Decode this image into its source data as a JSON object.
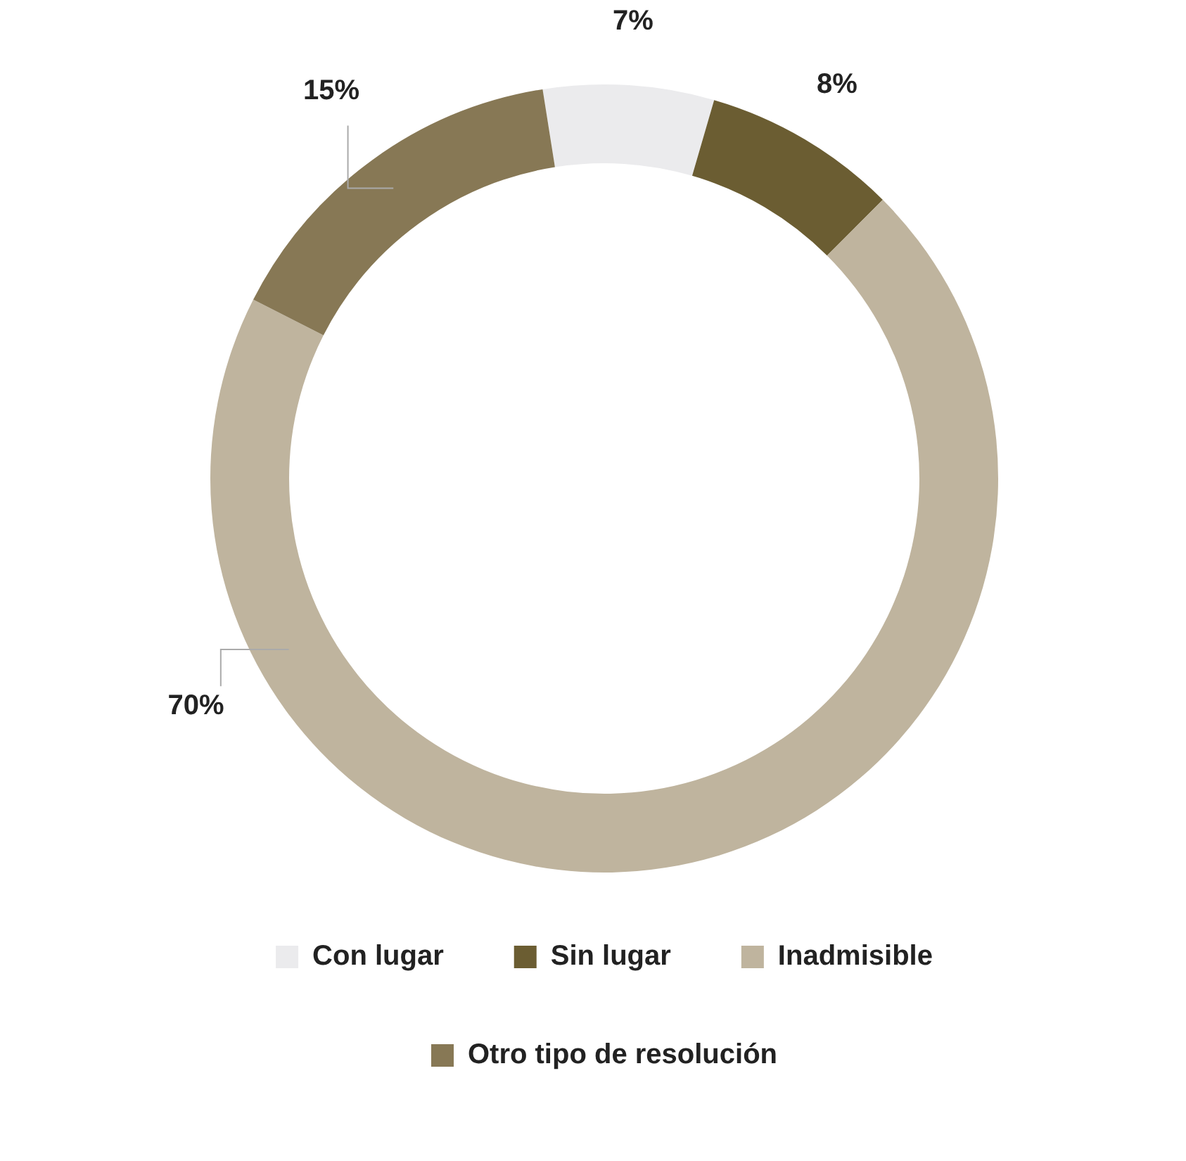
{
  "chart_data": {
    "type": "donut",
    "categories": [
      "Con lugar",
      "Sin lugar",
      "Inadmisible",
      "Otro tipo de resolución"
    ],
    "values": [
      7,
      8,
      70,
      15
    ],
    "colors": [
      "#ebebed",
      "#6b5d32",
      "#bfb49e",
      "#877855"
    ],
    "value_labels": [
      "7%",
      "8%",
      "70%",
      "15%"
    ],
    "legend": "bottom"
  }
}
